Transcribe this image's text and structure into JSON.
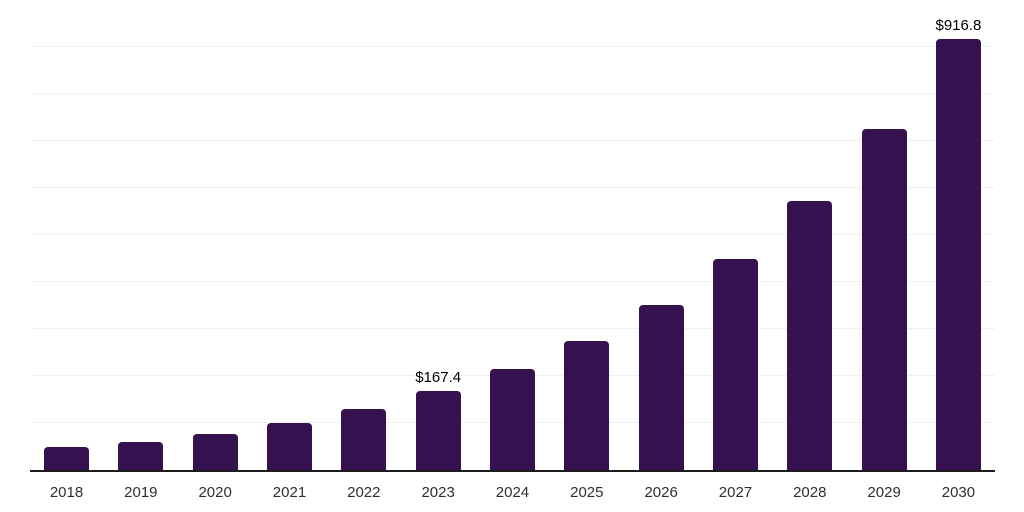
{
  "chart_data": {
    "type": "bar",
    "title": "",
    "xlabel": "",
    "ylabel": "",
    "categories": [
      "2018",
      "2019",
      "2020",
      "2021",
      "2022",
      "2023",
      "2024",
      "2025",
      "2026",
      "2027",
      "2028",
      "2029",
      "2030"
    ],
    "values": [
      50,
      60,
      77,
      100,
      130,
      167.4,
      214,
      274,
      352,
      449,
      573,
      725,
      916.8
    ],
    "data_labels": [
      "",
      "",
      "",
      "",
      "",
      "$167.4",
      "",
      "",
      "",
      "",
      "",
      "",
      "$916.8"
    ],
    "ylim": [
      0,
      1000
    ],
    "gridline_step": 100,
    "grid": "horizontal",
    "legend_position": "none",
    "colors": {
      "bar": "#361150",
      "gridline": "#f0f0f0",
      "axis": "#1c1c1c",
      "value_label": "#000000",
      "tick_label": "#2f2f2f",
      "background": "#ffffff"
    }
  }
}
